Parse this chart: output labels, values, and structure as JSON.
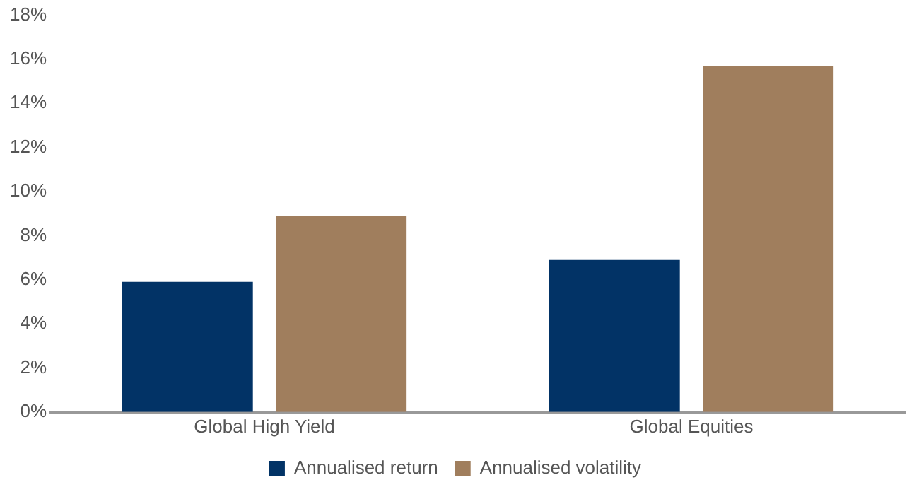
{
  "chart_data": {
    "type": "bar",
    "categories": [
      "Global High Yield",
      "Global Equities"
    ],
    "series": [
      {
        "name": "Annualised return",
        "color": "#023366",
        "values": [
          5.9,
          6.9
        ]
      },
      {
        "name": "Annualised volatility",
        "color": "#a07e5d",
        "values": [
          8.9,
          15.7
        ]
      }
    ],
    "ylim": [
      0,
      18
    ],
    "yticks": [
      {
        "value": 0,
        "label": "0%"
      },
      {
        "value": 2,
        "label": "2%"
      },
      {
        "value": 4,
        "label": "4%"
      },
      {
        "value": 6,
        "label": "6%"
      },
      {
        "value": 8,
        "label": "8%"
      },
      {
        "value": 10,
        "label": "10%"
      },
      {
        "value": 12,
        "label": "12%"
      },
      {
        "value": 14,
        "label": "14%"
      },
      {
        "value": 16,
        "label": "16%"
      },
      {
        "value": 18,
        "label": "18%"
      }
    ],
    "grid": false,
    "legend": "bottom"
  }
}
